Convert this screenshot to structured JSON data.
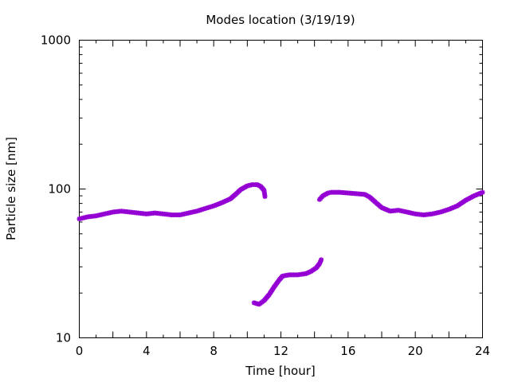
{
  "chart_data": {
    "type": "scatter",
    "title": "Modes location (3/19/19)",
    "xlabel": "Time [hour]",
    "ylabel": "Particle size [nm]",
    "xlim": [
      0,
      24
    ],
    "ylim": [
      10,
      1000
    ],
    "yscale": "log",
    "xticks": [
      0,
      4,
      8,
      12,
      16,
      20,
      24
    ],
    "yticks": [
      10,
      100,
      1000
    ],
    "grid": false,
    "marker_color": "#9400d3",
    "series": [
      {
        "points": [
          [
            0.0,
            63
          ],
          [
            0.5,
            65
          ],
          [
            1.0,
            66
          ],
          [
            1.5,
            68
          ],
          [
            2.0,
            70
          ],
          [
            2.5,
            71
          ],
          [
            3.0,
            70
          ],
          [
            3.5,
            69
          ],
          [
            4.0,
            68
          ],
          [
            4.5,
            69
          ],
          [
            5.0,
            68
          ],
          [
            5.5,
            67
          ],
          [
            6.0,
            67
          ],
          [
            6.5,
            69
          ],
          [
            7.0,
            71
          ],
          [
            7.5,
            74
          ],
          [
            8.0,
            77
          ],
          [
            8.5,
            81
          ],
          [
            9.0,
            86
          ],
          [
            9.3,
            92
          ],
          [
            9.6,
            99
          ],
          [
            10.0,
            105
          ],
          [
            10.3,
            107
          ],
          [
            10.6,
            107
          ],
          [
            10.8,
            104
          ],
          [
            11.0,
            98
          ],
          [
            11.05,
            89
          ],
          [
            10.4,
            17.2
          ],
          [
            10.7,
            16.8
          ],
          [
            11.0,
            17.8
          ],
          [
            11.3,
            19.5
          ],
          [
            11.6,
            22
          ],
          [
            11.9,
            24.5
          ],
          [
            12.1,
            26
          ],
          [
            12.5,
            26.5
          ],
          [
            13.0,
            26.5
          ],
          [
            13.5,
            27
          ],
          [
            13.8,
            28
          ],
          [
            14.1,
            29.5
          ],
          [
            14.3,
            31.5
          ],
          [
            14.4,
            33.5
          ],
          [
            14.3,
            85
          ],
          [
            14.5,
            90
          ],
          [
            14.8,
            94
          ],
          [
            15.0,
            95
          ],
          [
            15.5,
            95
          ],
          [
            16.0,
            94
          ],
          [
            16.5,
            93
          ],
          [
            17.0,
            92
          ],
          [
            17.3,
            88
          ],
          [
            17.6,
            82
          ],
          [
            18.0,
            75
          ],
          [
            18.5,
            71
          ],
          [
            19.0,
            72
          ],
          [
            19.5,
            70
          ],
          [
            20.0,
            68
          ],
          [
            20.5,
            67
          ],
          [
            21.0,
            68
          ],
          [
            21.5,
            70
          ],
          [
            22.0,
            73
          ],
          [
            22.5,
            77
          ],
          [
            23.0,
            84
          ],
          [
            23.5,
            90
          ],
          [
            24.0,
            95
          ]
        ]
      }
    ]
  }
}
